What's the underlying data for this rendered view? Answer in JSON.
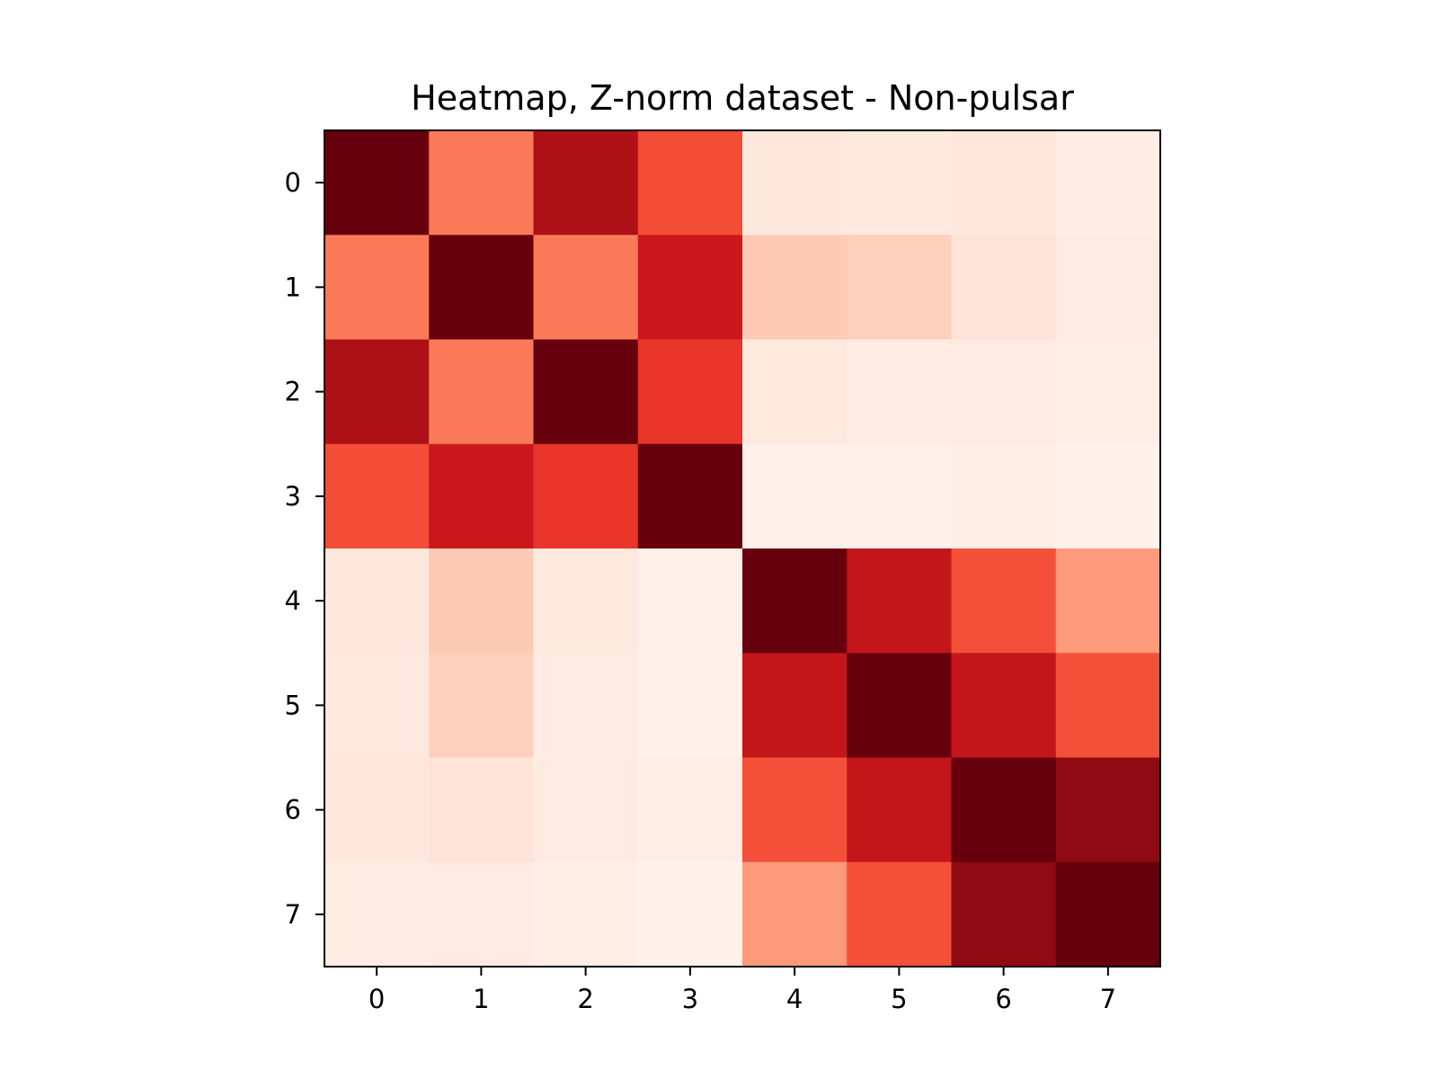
{
  "chart_data": {
    "type": "heatmap",
    "title": "Heatmap, Z-norm dataset - Non-pulsar",
    "xlabel": "",
    "ylabel": "",
    "x_ticks": [
      "0",
      "1",
      "2",
      "3",
      "4",
      "5",
      "6",
      "7"
    ],
    "y_ticks": [
      "0",
      "1",
      "2",
      "3",
      "4",
      "5",
      "6",
      "7"
    ],
    "colormap": "Reds",
    "value_range": [
      0,
      1
    ],
    "values": [
      [
        1.0,
        0.45,
        0.85,
        0.58,
        0.08,
        0.07,
        0.08,
        0.05
      ],
      [
        0.45,
        1.0,
        0.45,
        0.75,
        0.2,
        0.18,
        0.1,
        0.06
      ],
      [
        0.85,
        0.45,
        1.0,
        0.65,
        0.07,
        0.06,
        0.06,
        0.04
      ],
      [
        0.58,
        0.75,
        0.65,
        1.0,
        0.03,
        0.03,
        0.04,
        0.02
      ],
      [
        0.08,
        0.2,
        0.07,
        0.03,
        1.0,
        0.78,
        0.57,
        0.35
      ],
      [
        0.07,
        0.18,
        0.06,
        0.03,
        0.78,
        1.0,
        0.78,
        0.57
      ],
      [
        0.08,
        0.1,
        0.06,
        0.04,
        0.57,
        0.78,
        1.0,
        0.92
      ],
      [
        0.05,
        0.06,
        0.04,
        0.02,
        0.35,
        0.57,
        0.92,
        1.0
      ]
    ],
    "grid": false,
    "colorbar": false
  }
}
